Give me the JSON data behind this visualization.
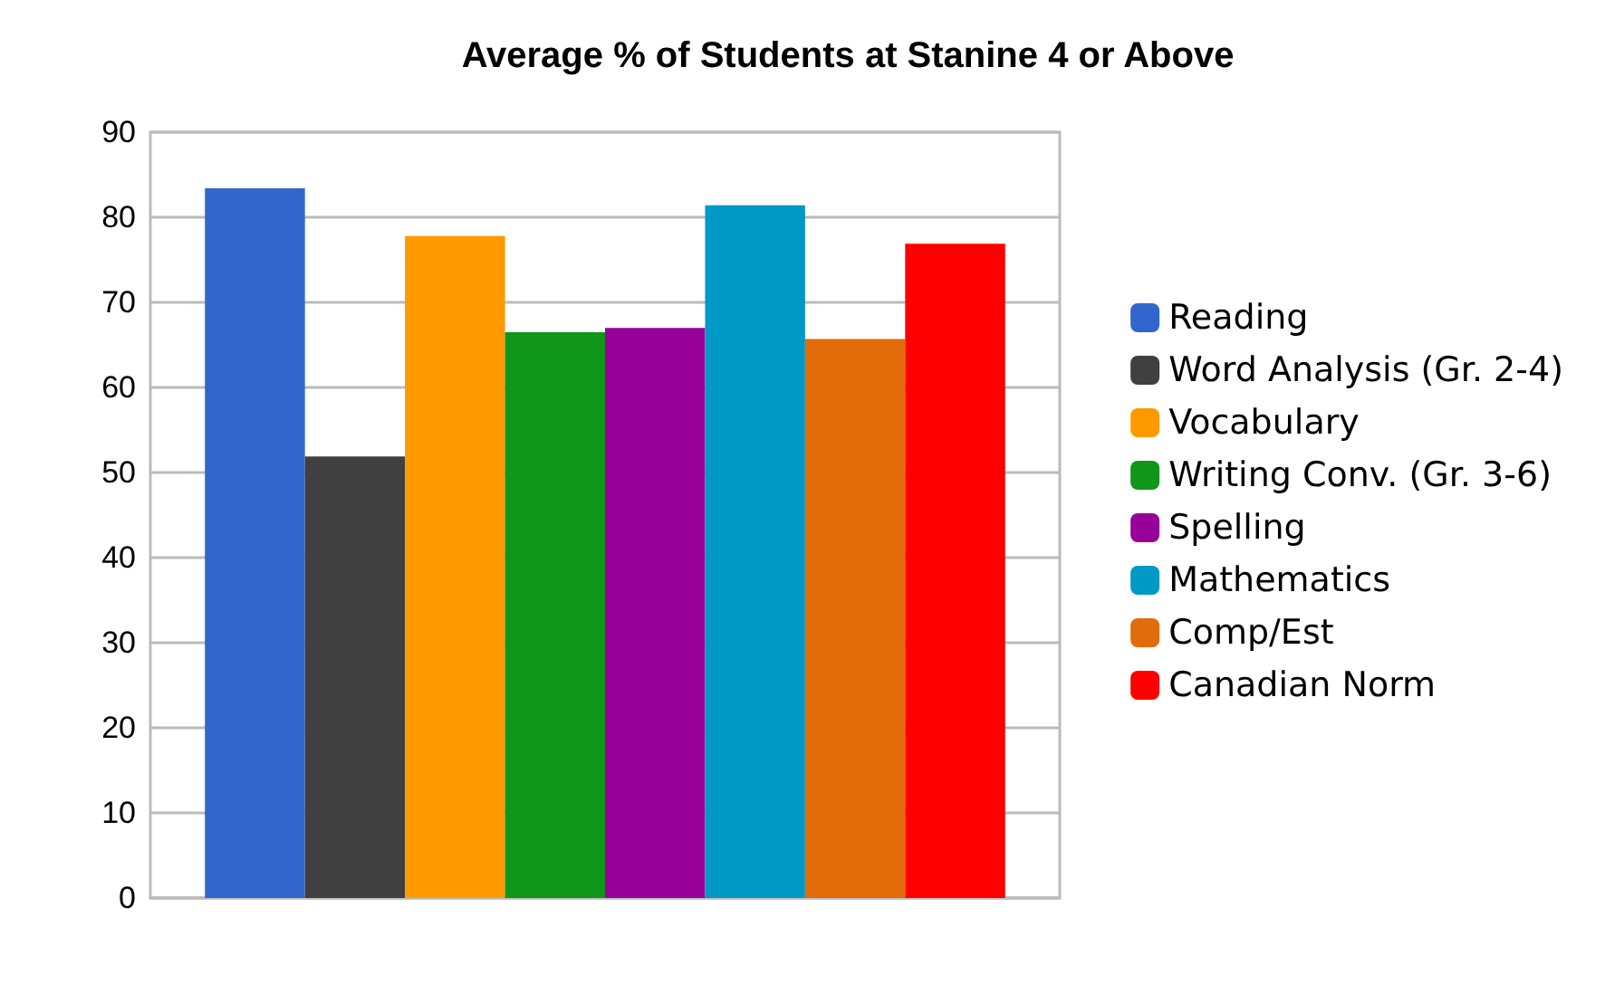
{
  "chart_data": {
    "type": "bar",
    "title": "Average % of Students at Stanine 4 or Above",
    "categories": [
      null
    ],
    "series": [
      {
        "name": "Reading",
        "color": "#3366cc",
        "values": [
          83.4
        ]
      },
      {
        "name": "Word Analysis (Gr. 2-4)",
        "color": "#404040",
        "values": [
          51.9
        ]
      },
      {
        "name": "Vocabulary",
        "color": "#ff9900",
        "values": [
          77.8
        ]
      },
      {
        "name": "Writing Conv. (Gr. 3-6)",
        "color": "#109618",
        "values": [
          66.5
        ]
      },
      {
        "name": "Spelling",
        "color": "#990099",
        "values": [
          67.0
        ]
      },
      {
        "name": "Mathematics",
        "color": "#0099c6",
        "values": [
          81.4
        ]
      },
      {
        "name": "Comp/Est",
        "color": "#e26b0a",
        "values": [
          65.7
        ]
      },
      {
        "name": "Canadian Norm",
        "color": "#ff0000",
        "values": [
          76.9
        ]
      }
    ],
    "ylim": [
      0,
      90
    ],
    "yticks": [
      0,
      10,
      20,
      30,
      40,
      50,
      60,
      70,
      80,
      90
    ],
    "grid": "y",
    "legend": "right"
  }
}
